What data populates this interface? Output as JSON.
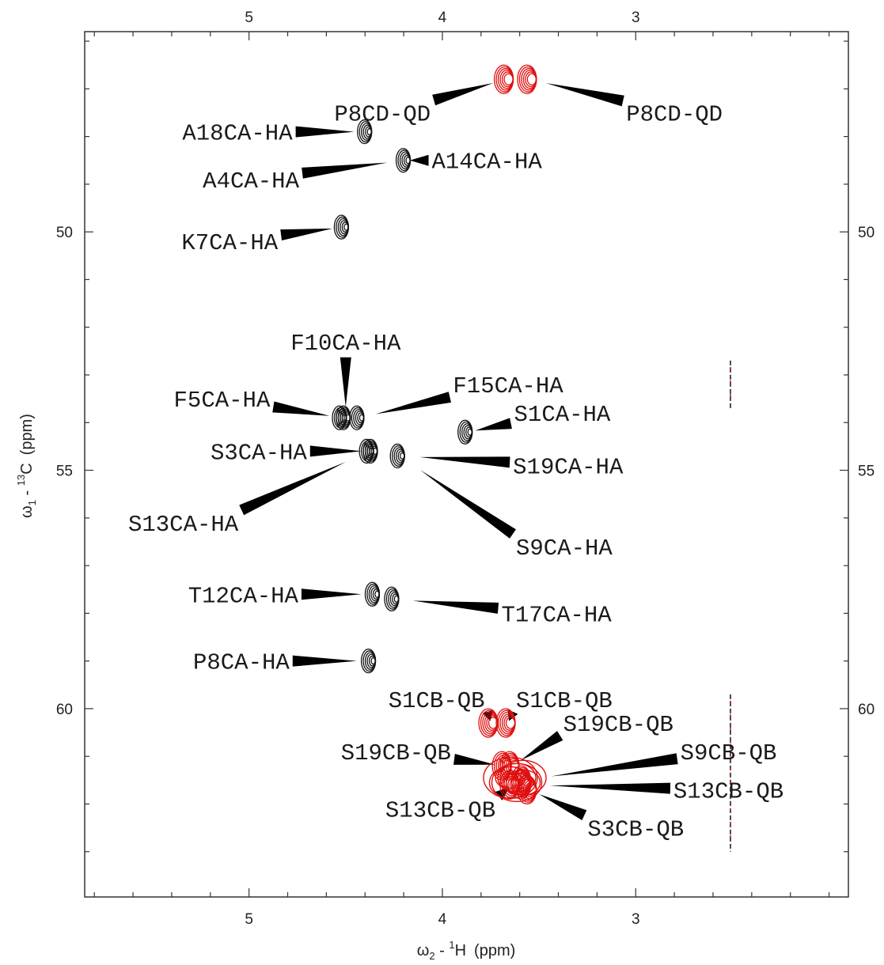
{
  "chart_data": {
    "type": "scatter",
    "title": "",
    "xlabel": {
      "symbol": "ω",
      "index": "2",
      "isotope_mass": "1",
      "isotope": "H",
      "unit": "(ppm)"
    },
    "ylabel": {
      "symbol": "ω",
      "index": "1",
      "isotope_mass": "13",
      "isotope": "C",
      "unit": "(ppm)"
    },
    "xlim": [
      5.85,
      1.9
    ],
    "ylim": [
      45.8,
      63.95
    ],
    "x_reversed": true,
    "y_reversed": true,
    "x_major_ticks": [
      5,
      4,
      3
    ],
    "x_tick_labels": [
      "5",
      "4",
      "3"
    ],
    "y_major_ticks": [
      50,
      55,
      60
    ],
    "y_tick_labels": [
      "50",
      "55",
      "60"
    ],
    "grid": false,
    "legend": "none",
    "colors": {
      "positive": "#141414",
      "negative": "#e01010",
      "pointer": "#000000"
    },
    "peaks": [
      {
        "label": "P8CD-QD",
        "x": 3.67,
        "y": 46.8,
        "color": "red",
        "label_x": 4.31,
        "label_y": 47.5
      },
      {
        "label": "P8CD-QD",
        "x": 3.55,
        "y": 46.8,
        "color": "red",
        "label_x": 2.8,
        "label_y": 47.5
      },
      {
        "label": "A18CA-HA",
        "x": 4.39,
        "y": 47.9,
        "color": "black",
        "label_x": 5.06,
        "label_y": 47.9
      },
      {
        "label": "A14CA-HA",
        "x": 4.19,
        "y": 48.5,
        "color": "black",
        "label_x": 3.77,
        "label_y": 48.5
      },
      {
        "label": "A4CA-HA",
        "x": 4.19,
        "y": 48.5,
        "color": "black",
        "label_x": 4.99,
        "label_y": 48.9
      },
      {
        "label": "K7CA-HA",
        "x": 4.51,
        "y": 49.9,
        "color": "black",
        "label_x": 5.1,
        "label_y": 50.2
      },
      {
        "label": "F10CA-HA",
        "x": 4.5,
        "y": 53.9,
        "color": "black",
        "label_x": 4.5,
        "label_y": 52.3
      },
      {
        "label": "F15CA-HA",
        "x": 4.43,
        "y": 53.9,
        "color": "black",
        "label_x": 3.66,
        "label_y": 53.2
      },
      {
        "label": "F5CA-HA",
        "x": 4.52,
        "y": 53.9,
        "color": "black",
        "label_x": 5.14,
        "label_y": 53.5
      },
      {
        "label": "S1CA-HA",
        "x": 3.87,
        "y": 54.2,
        "color": "black",
        "label_x": 3.38,
        "label_y": 53.8
      },
      {
        "label": "S3CA-HA",
        "x": 4.36,
        "y": 54.6,
        "color": "black",
        "label_x": 4.95,
        "label_y": 54.6
      },
      {
        "label": "S19CA-HA",
        "x": 4.22,
        "y": 54.7,
        "color": "black",
        "label_x": 3.35,
        "label_y": 54.9
      },
      {
        "label": "S13CA-HA",
        "x": 4.38,
        "y": 54.6,
        "color": "black",
        "label_x": 5.34,
        "label_y": 56.1
      },
      {
        "label": "S9CA-HA",
        "x": 4.22,
        "y": 54.7,
        "color": "black",
        "label_x": 3.37,
        "label_y": 56.6
      },
      {
        "label": "T12CA-HA",
        "x": 4.35,
        "y": 57.6,
        "color": "black",
        "label_x": 5.03,
        "label_y": 57.6
      },
      {
        "label": "T17CA-HA",
        "x": 4.25,
        "y": 57.7,
        "color": "black",
        "label_x": 3.41,
        "label_y": 58.0
      },
      {
        "label": "P8CA-HA",
        "x": 4.37,
        "y": 59.0,
        "color": "black",
        "label_x": 5.04,
        "label_y": 59.0
      },
      {
        "label": "S1CB-QB",
        "x": 3.75,
        "y": 60.3,
        "color": "red",
        "label_x": 4.03,
        "label_y": 59.8
      },
      {
        "label": "S1CB-QB",
        "x": 3.66,
        "y": 60.3,
        "color": "red",
        "label_x": 3.37,
        "label_y": 59.8
      },
      {
        "label": "S19CB-QB",
        "x": 3.64,
        "y": 61.2,
        "color": "red",
        "label_x": 3.09,
        "label_y": 60.3
      },
      {
        "label": "S9CB-QB",
        "x": 3.58,
        "y": 61.5,
        "color": "red",
        "label_x": 2.52,
        "label_y": 60.9
      },
      {
        "label": "S19CB-QB",
        "x": 3.68,
        "y": 61.2,
        "color": "red",
        "label_x": 4.24,
        "label_y": 60.9
      },
      {
        "label": "S13CB-QB",
        "x": 3.58,
        "y": 61.6,
        "color": "red",
        "label_x": 2.52,
        "label_y": 61.7
      },
      {
        "label": "S13CB-QB",
        "x": 3.64,
        "y": 61.6,
        "color": "red",
        "label_x": 4.01,
        "label_y": 62.1
      },
      {
        "label": "S3CB-QB",
        "x": 3.55,
        "y": 61.7,
        "color": "red",
        "label_x": 3.0,
        "label_y": 62.5
      }
    ],
    "artifact_streaks": [
      {
        "x": 2.51,
        "y_from": 52.7,
        "y_to": 53.7,
        "colors": [
          "black",
          "red"
        ]
      },
      {
        "x": 2.51,
        "y_from": 59.7,
        "y_to": 63.0,
        "colors": [
          "black",
          "red"
        ]
      }
    ]
  }
}
